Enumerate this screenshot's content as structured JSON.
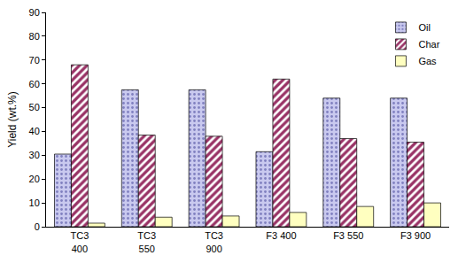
{
  "chart_data": {
    "type": "bar",
    "y_label": "Yield (wt.%)",
    "categories": [
      "TC3\n400",
      "TC3\n550",
      "TC3\n900",
      "F3 400",
      "F3 550",
      "F3 900"
    ],
    "series": [
      {
        "name": "Oil",
        "color": "#c9c9ef",
        "values": [
          30.5,
          57.5,
          57.5,
          31.5,
          54,
          54
        ]
      },
      {
        "name": "Char",
        "color": "#993366",
        "values": [
          68,
          38.5,
          38,
          62,
          37,
          35.5
        ]
      },
      {
        "name": "Gas",
        "color": "#ffffc0",
        "values": [
          1.5,
          4,
          4.5,
          6,
          8.5,
          10
        ]
      }
    ],
    "ylim": [
      0,
      90
    ],
    "yticks": [
      0,
      10,
      20,
      30,
      40,
      50,
      60,
      70,
      80,
      90
    ],
    "grid": false,
    "legend": "top right"
  }
}
